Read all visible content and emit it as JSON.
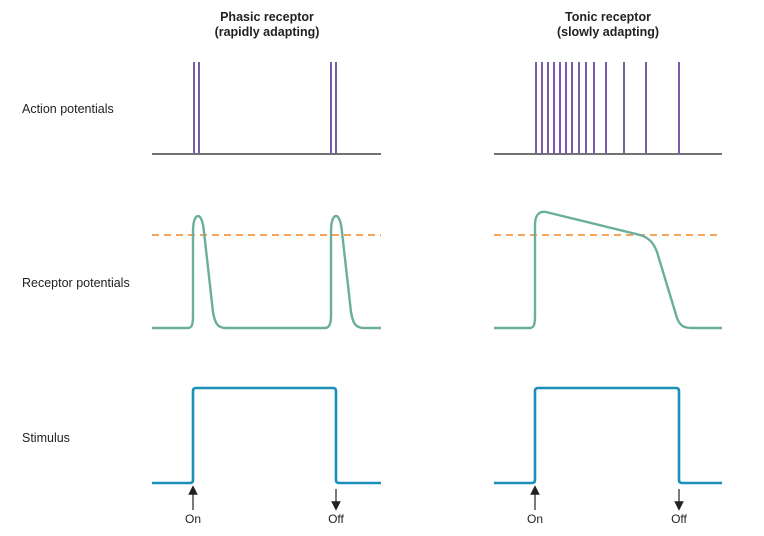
{
  "columns": [
    {
      "title_line1": "Phasic receptor",
      "title_line2": "(rapidly adapting)",
      "on_label": "On",
      "off_label": "Off"
    },
    {
      "title_line1": "Tonic receptor",
      "title_line2": "(slowly adapting)",
      "on_label": "On",
      "off_label": "Off"
    }
  ],
  "rows": {
    "action_potentials": "Action potentials",
    "receptor_potentials": "Receptor potentials",
    "stimulus": "Stimulus"
  },
  "colors": {
    "spike": "#7b5aa6",
    "baseline": "#444444",
    "receptor_curve": "#6aae9c",
    "threshold": "#f5a65b",
    "stimulus": "#1a8fb8",
    "arrow": "#222222"
  },
  "counts": {
    "phasic_spikes": 4,
    "tonic_spikes": 14
  }
}
